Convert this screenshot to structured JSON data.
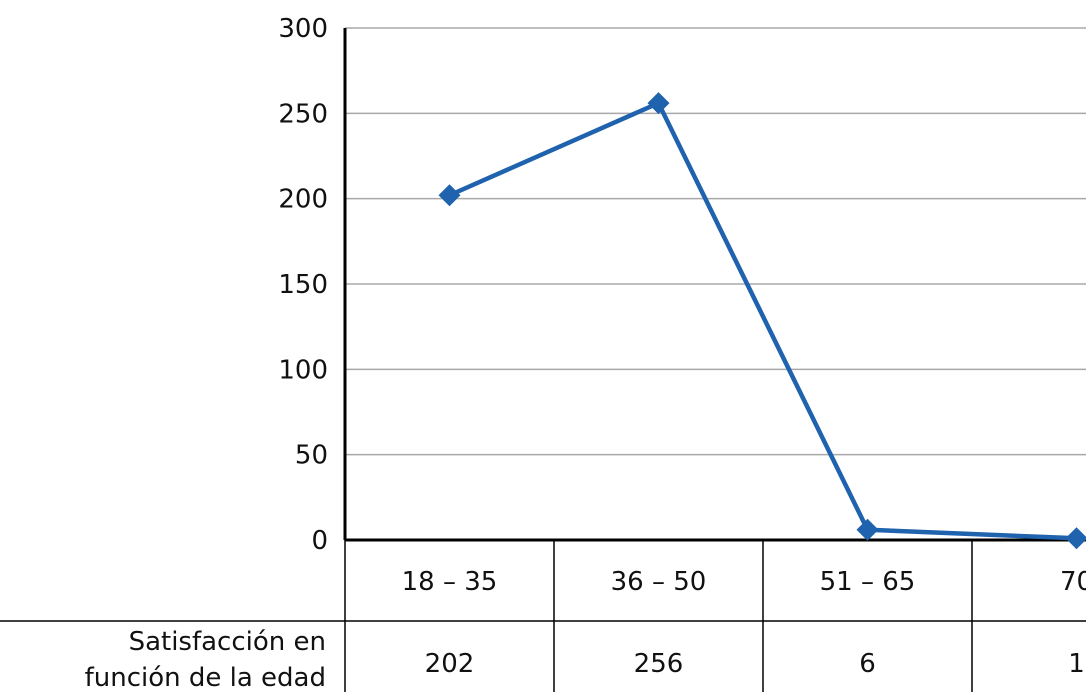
{
  "chart_data": {
    "type": "line",
    "title": "",
    "xlabel": "",
    "ylabel": "",
    "ylim": [
      0,
      300
    ],
    "yticks": [
      0,
      50,
      100,
      150,
      200,
      250,
      300
    ],
    "grid": true,
    "categories": [
      "18 – 35",
      "36 – 50",
      "51 – 65",
      "70"
    ],
    "series": [
      {
        "name": "Satisfacción en función de la edad",
        "name_lines": [
          "Satisfacción en",
          "función de la edad"
        ],
        "values": [
          202,
          256,
          6,
          1
        ],
        "table_values": [
          "202",
          "256",
          "6",
          "1"
        ],
        "color": "#1f62ad"
      }
    ],
    "data_table": true
  }
}
